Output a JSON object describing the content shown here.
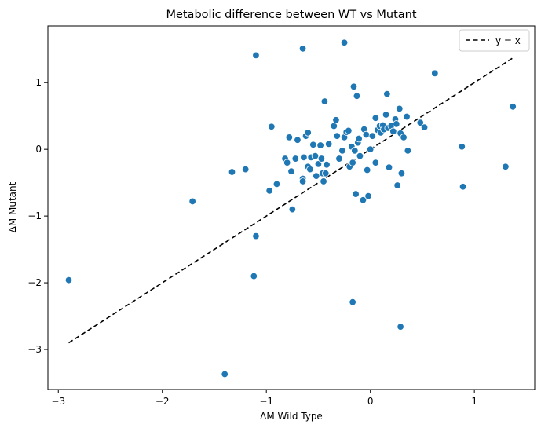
{
  "chart_data": {
    "type": "scatter",
    "title": "Metabolic difference between WT vs Mutant",
    "xlabel": "ΔM Wild Type",
    "ylabel": "ΔM Mutant",
    "xlim": [
      -3.1,
      1.58
    ],
    "ylim": [
      -3.6,
      1.85
    ],
    "xticks": [
      -3,
      -2,
      -1,
      0,
      1
    ],
    "yticks": [
      -3,
      -2,
      -1,
      0,
      1
    ],
    "grid": false,
    "legend_position": "top-right",
    "reference_line": {
      "label": "y = x",
      "x_start": -2.9,
      "x_end": 1.37,
      "style": "dashed",
      "color": "#000000"
    },
    "series": [
      {
        "color": "#1f77b4",
        "points": [
          [
            -2.9,
            -1.96
          ],
          [
            -1.4,
            -3.37
          ],
          [
            -1.71,
            -0.78
          ],
          [
            -1.33,
            -0.34
          ],
          [
            -1.2,
            -0.3
          ],
          [
            -1.12,
            -1.9
          ],
          [
            -1.1,
            -1.3
          ],
          [
            -1.1,
            1.41
          ],
          [
            -0.65,
            1.51
          ],
          [
            -0.25,
            1.6
          ],
          [
            -0.95,
            0.34
          ],
          [
            -0.97,
            -0.62
          ],
          [
            -0.9,
            -0.52
          ],
          [
            -0.82,
            -0.14
          ],
          [
            -0.8,
            -0.2
          ],
          [
            -0.78,
            0.18
          ],
          [
            -0.76,
            -0.33
          ],
          [
            -0.75,
            -0.9
          ],
          [
            -0.72,
            -0.14
          ],
          [
            -0.7,
            0.14
          ],
          [
            -0.65,
            -0.44
          ],
          [
            -0.65,
            -0.48
          ],
          [
            -0.64,
            -0.12
          ],
          [
            -0.62,
            0.2
          ],
          [
            -0.6,
            0.25
          ],
          [
            -0.6,
            -0.26
          ],
          [
            -0.58,
            -0.3
          ],
          [
            -0.57,
            -0.12
          ],
          [
            -0.55,
            0.07
          ],
          [
            -0.53,
            -0.1
          ],
          [
            -0.52,
            -0.4
          ],
          [
            -0.5,
            -0.22
          ],
          [
            -0.48,
            0.06
          ],
          [
            -0.47,
            -0.14
          ],
          [
            -0.46,
            -0.36
          ],
          [
            -0.45,
            -0.48
          ],
          [
            -0.44,
            0.72
          ],
          [
            -0.43,
            -0.36
          ],
          [
            -0.42,
            -0.23
          ],
          [
            -0.4,
            0.08
          ],
          [
            -0.35,
            0.35
          ],
          [
            -0.33,
            0.44
          ],
          [
            -0.32,
            0.2
          ],
          [
            -0.3,
            -0.14
          ],
          [
            -0.27,
            -0.02
          ],
          [
            -0.25,
            0.18
          ],
          [
            -0.23,
            0.26
          ],
          [
            -0.21,
            0.28
          ],
          [
            -0.2,
            -0.26
          ],
          [
            -0.18,
            0.04
          ],
          [
            -0.17,
            -0.2
          ],
          [
            -0.16,
            0.94
          ],
          [
            -0.15,
            -0.02
          ],
          [
            -0.14,
            -0.67
          ],
          [
            -0.13,
            0.8
          ],
          [
            -0.12,
            0.1
          ],
          [
            -0.11,
            0.16
          ],
          [
            -0.1,
            -0.1
          ],
          [
            -0.07,
            -0.76
          ],
          [
            -0.06,
            0.3
          ],
          [
            -0.04,
            0.22
          ],
          [
            -0.03,
            -0.31
          ],
          [
            -0.02,
            -0.7
          ],
          [
            0.0,
            0.0
          ],
          [
            0.02,
            0.2
          ],
          [
            0.05,
            0.47
          ],
          [
            0.05,
            -0.2
          ],
          [
            0.07,
            0.29
          ],
          [
            0.09,
            0.35
          ],
          [
            0.1,
            0.25
          ],
          [
            0.12,
            0.36
          ],
          [
            0.13,
            0.3
          ],
          [
            0.15,
            0.52
          ],
          [
            0.16,
            0.83
          ],
          [
            0.17,
            0.32
          ],
          [
            0.18,
            -0.27
          ],
          [
            0.2,
            0.35
          ],
          [
            0.22,
            0.27
          ],
          [
            0.24,
            0.45
          ],
          [
            0.25,
            0.38
          ],
          [
            0.26,
            -0.54
          ],
          [
            0.28,
            0.61
          ],
          [
            0.29,
            0.24
          ],
          [
            0.3,
            -0.36
          ],
          [
            0.32,
            0.18
          ],
          [
            0.35,
            0.49
          ],
          [
            0.36,
            -0.02
          ],
          [
            0.48,
            0.4
          ],
          [
            0.52,
            0.33
          ],
          [
            0.62,
            1.14
          ],
          [
            0.88,
            0.04
          ],
          [
            0.89,
            -0.56
          ],
          [
            1.3,
            -0.26
          ],
          [
            1.37,
            0.64
          ],
          [
            -0.17,
            -2.29
          ],
          [
            0.29,
            -2.66
          ]
        ]
      }
    ]
  }
}
